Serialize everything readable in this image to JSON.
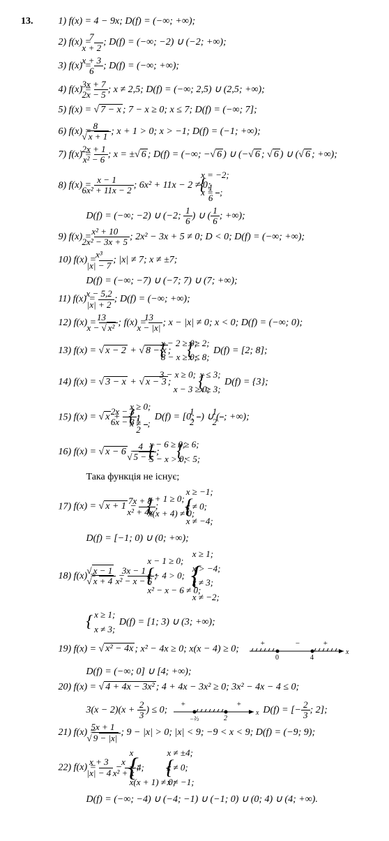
{
  "problem_number": "13.",
  "items": [
    {
      "n": "1)",
      "expr": "f(x) = 4 − 9x;   D(f) = (−∞; +∞);"
    },
    {
      "n": "2)",
      "expr_html": "f(x) = <frac>7|x + 2</frac>;   D(f) = (−∞; −2) ∪ (−2; +∞);"
    },
    {
      "n": "3)",
      "expr_html": "f(x) = <frac>x + 3|6</frac>;   D(f) = (−∞; +∞);"
    },
    {
      "n": "4)",
      "expr_html": "f(x) = <frac>3x + 7|2x − 5</frac>;   x ≠ 2,5;   D(f) = (−∞; 2,5) ∪ (2,5; +∞);"
    },
    {
      "n": "5)",
      "expr_html": "f(x) = √<ol>7 − x</ol>;   7 − x ≥ 0;   x ≤ 7;   D(f) = (−∞; 7];"
    },
    {
      "n": "6)",
      "expr_html": "f(x) = <frac>8|√<ol>x + 1</ol></frac>;   x + 1 > 0;   x > −1;   D(f) = (−1; +∞);"
    },
    {
      "n": "7)",
      "expr_html": "f(x) = <frac>2x + 1|x² − 6</frac>;   x = ±√<ol>6</ol>;   D(f) = (−∞; −√<ol>6</ol>) ∪ (−√<ol>6</ol>; √<ol>6</ol>) ∪ (√<ol>6</ol>; +∞);"
    },
    {
      "n": "8)",
      "expr_html": "f(x) = <frac>x − 1|6x² + 11x − 2</frac>;   6x² + 11x − 2 ≠ 0;   <cases>x = −2;|x = <frac>1|6</frac>;</cases>",
      "cont": "D(f) = (−∞; −2) ∪ (−2; <frac>1|6</frac>) ∪ (<frac>1|6</frac>; +∞);"
    },
    {
      "n": "9)",
      "expr_html": "f(x) = <frac>x² + 10|2x² − 3x + 5</frac>;   2x² − 3x + 5 ≠ 0;   D < 0;   D(f) = (−∞; +∞);"
    },
    {
      "n": "10)",
      "expr_html": "f(x) = <frac>x³||x| − 7</frac>;   |x| ≠ 7;   x ≠ ±7;",
      "cont": "D(f) = (−∞; −7) ∪ (−7; 7) ∪ (7; +∞);"
    },
    {
      "n": "11)",
      "expr_html": "f(x) = <frac>x − 5,2||x| + 2</frac>;   D(f) = (−∞; +∞);"
    },
    {
      "n": "12)",
      "expr_html": "f(x) = <frac>13|x − √<ol>x²</ol></frac>;   f(x) = <frac>13|x − |x|</frac>;   x − |x| ≠ 0;   x < 0;   D(f) = (−∞; 0);"
    },
    {
      "n": "13)",
      "expr_html": "f(x) = √<ol>x − 2</ol> + √<ol>8 − x</ol>;   <cases>x − 2 ≥ 0;|8 − x ≥ 0;</cases>   <cases>x ≥ 2;|x ≤ 8;</cases>   D(f) = [2; 8];"
    },
    {
      "n": "14)",
      "expr_html": "f(x) = √<ol>3 − x</ol> + √<ol>x − 3</ol>;   <sp>3 − x ≥ 0;<br>x − 3 ≥ 0;</sp>   <cases>x ≤ 3;|x ≥ 3;</cases>   D(f) = {3};"
    },
    {
      "n": "15)",
      "expr_html": "f(x) = √<ol>x</ol> + <frac>2x − 3|6x − 3</frac>;   <cases>x ≥ 0;|x ≠ <frac>1|2</frac>;</cases>   D(f) = [0; <frac>1|2</frac>) ∪ (<frac>1|2</frac>; +∞);"
    },
    {
      "n": "16)",
      "expr_html": "f(x) = √<ol>x − 6</ol> − <frac>4|√<ol>5 − x</ol></frac>;   <cases>x − 6 ≥ 0;|5 − x > 0;</cases>   <cases>x ≥ 6;|x < 5;</cases>",
      "cont_plain": "Така функція не існує;"
    },
    {
      "n": "17)",
      "expr_html": "f(x) = √<ol>x + 1</ol> − <frac>7x + 8|x² + 4x</frac>;   <cases>x + 1 ≥ 0;|x(x + 4) ≠ 0;</cases>   <cases>x ≥ −1;|x ≠ 0;|x ≠ −4;</cases>",
      "cont": "D(f) = [−1; 0) ∪ (0; +∞);"
    },
    {
      "n": "18)",
      "expr_html": "f(x) = <frac>√<ol>x − 1</ol>|√<ol>x + 4</ol></frac> − <frac>3x − 1|x² − x − 6</frac>;   <cases>x − 1 ≥ 0;|x + 4 > 0;|x² − x − 6 ≠ 0;</cases>   <cases>x ≥ 1;|x > −4;|x ≠ 3;|x ≠ −2;</cases>",
      "cont_html": "<cases>x ≥ 1;|x ≠ 3;</cases>   D(f) = [1; 3) ∪ (3; +∞);"
    },
    {
      "n": "19)",
      "expr_html": "f(x) = √<ol>x² − 4x</ol>;   x² − 4x ≥ 0;   x(x − 4) ≥ 0;",
      "cont": "D(f) = (−∞; 0] ∪ [4; +∞);",
      "numberline": {
        "points": [
          0,
          4
        ],
        "signs": [
          "+",
          "−",
          "+"
        ]
      }
    },
    {
      "n": "20)",
      "expr_html": "f(x) = √<ol>4 + 4x − 3x²</ol>;   4 + 4x − 3x² ≥ 0;   3x² − 4x − 4 ≤ 0;",
      "cont_html": "3(x − 2)(x + <frac>2|3</frac>) ≤ 0;   <nl2>   D(f) = [−<frac>2|3</frac>; 2];",
      "numberline2": {
        "points": [
          "−⅔",
          "2"
        ]
      }
    },
    {
      "n": "21)",
      "expr_html": "f(x) = <frac>5x + 1|√<ol>9 − |x|</ol></frac>;   9 − |x| > 0;   |x| < 9;   −9 < x < 9;   D(f) = (−9; 9);"
    },
    {
      "n": "22)",
      "expr_html": "f(x) = <frac>x + 3||x| − 4</frac> − <frac>x|x² + x</frac>;   <cases>|x| ≠ 4;|x(x + 1) ≠ 0;</cases>   <cases>x ≠ ±4;|x ≠ 0;|x ≠ −1;</cases>",
      "cont": "D(f) = (−∞; −4) ∪ (−4; −1) ∪ (−1; 0) ∪ (0; 4) ∪ (4; +∞)."
    }
  ]
}
